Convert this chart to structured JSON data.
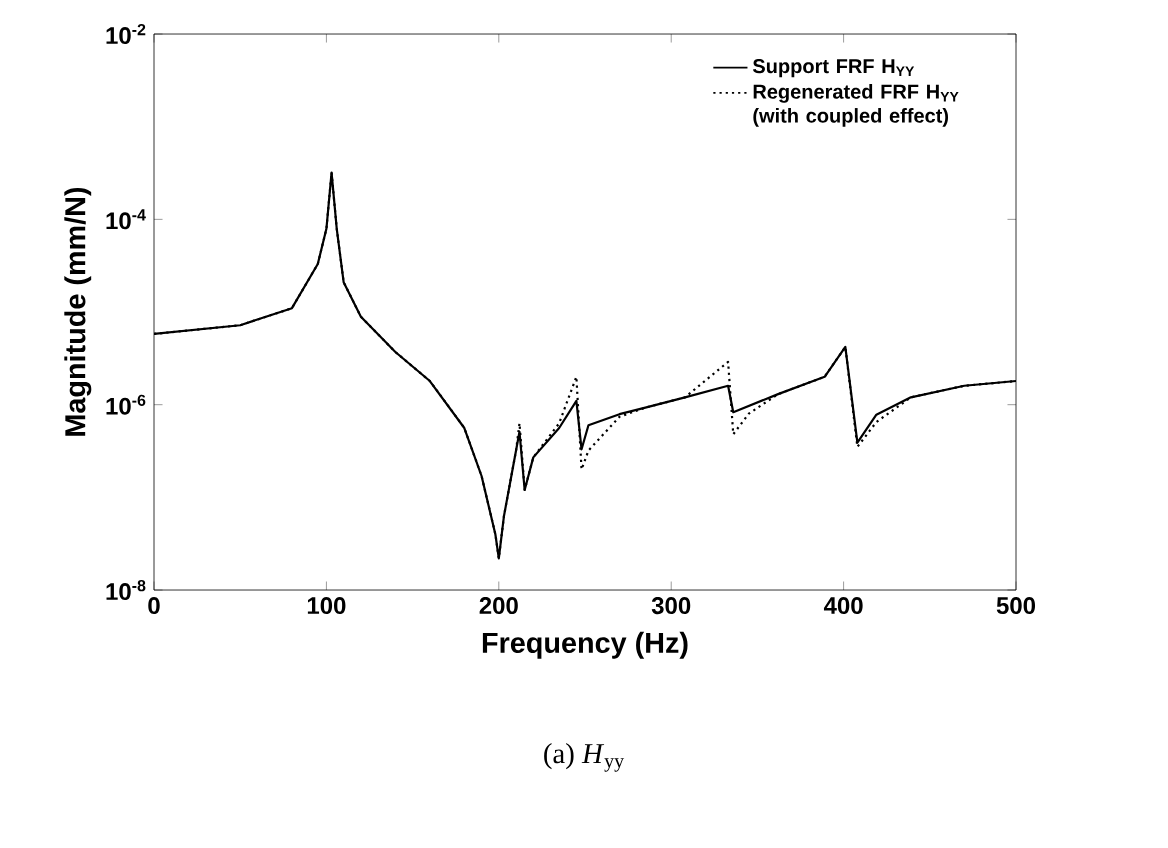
{
  "chart_data": {
    "type": "line",
    "xlabel": "Frequency  (Hz)",
    "ylabel": "Magnitude  (mm/N)",
    "log": "y",
    "xlim": [
      0,
      500
    ],
    "xticks": [
      0,
      100,
      200,
      300,
      400,
      500
    ],
    "ylim": [
      1e-08,
      0.01
    ],
    "yticks": [
      {
        "value": 1e-08,
        "label": "10$^{-8}$"
      },
      {
        "value": 1e-06,
        "label": "10$^{-6}$"
      },
      {
        "value": 0.0001,
        "label": "10$^{-4}$"
      },
      {
        "value": 0.01,
        "label": "10$^{-2}$"
      }
    ],
    "legend": "top right",
    "grid": false,
    "marker": "none",
    "series": [
      {
        "name": "Support FRF H$_{YY}$",
        "color": "#000000",
        "line_style": "solid",
        "x": [
          0,
          50,
          80,
          95,
          100,
          103,
          106,
          110,
          120,
          140,
          160,
          180,
          190,
          198,
          200,
          203,
          210,
          212,
          215,
          220,
          235,
          245,
          248,
          252,
          270,
          285,
          308,
          333,
          336,
          362,
          389,
          401,
          408,
          419,
          439,
          470,
          500
        ],
        "values": [
          5.8e-06,
          7.2e-06,
          1.1e-05,
          3.3e-05,
          7.9e-05,
          0.00032,
          7.9e-05,
          2.1e-05,
          8.9e-06,
          3.7e-06,
          1.8e-06,
          5.6e-07,
          1.7e-07,
          4e-08,
          2.2e-08,
          6.3e-08,
          3.2e-07,
          5.1e-07,
          1.2e-07,
          2.7e-07,
          5.6e-07,
          1.1e-06,
          3.3e-07,
          6e-07,
          7.9e-07,
          9.3e-07,
          1.2e-06,
          1.6e-06,
          8.3e-07,
          1.3e-06,
          2e-06,
          4.2e-06,
          3.9e-07,
          7.8e-07,
          1.2e-06,
          1.6e-06,
          1.8e-06
        ]
      },
      {
        "name": "Regenerated FRF H$_{YY}$ (with coupled effect)",
        "color": "#000000",
        "line_style": "dotted",
        "x": [
          0,
          50,
          80,
          95,
          100,
          103,
          106,
          110,
          120,
          140,
          160,
          180,
          190,
          198,
          200,
          203,
          210,
          212,
          215,
          220,
          235,
          245,
          248,
          252,
          270,
          285,
          308,
          333,
          336,
          345,
          362,
          389,
          401,
          408,
          419,
          439,
          470,
          500
        ],
        "values": [
          5.8e-06,
          7.2e-06,
          1.1e-05,
          3.3e-05,
          7.9e-05,
          0.00032,
          7.9e-05,
          2.1e-05,
          8.9e-06,
          3.7e-06,
          1.8e-06,
          5.6e-07,
          1.7e-07,
          4e-08,
          2.2e-08,
          6.3e-08,
          3.2e-07,
          6.3e-07,
          1.2e-07,
          2.7e-07,
          6.3e-07,
          2e-06,
          2e-07,
          3.2e-07,
          7.4e-07,
          9.3e-07,
          1.2e-06,
          2.9e-06,
          4.8e-07,
          8e-07,
          1.3e-06,
          2e-06,
          4.2e-06,
          3.5e-07,
          6.5e-07,
          1.2e-06,
          1.6e-06,
          1.8e-06
        ]
      }
    ],
    "annotations": [
      "(a)  *H*$_{yy}$"
    ]
  }
}
